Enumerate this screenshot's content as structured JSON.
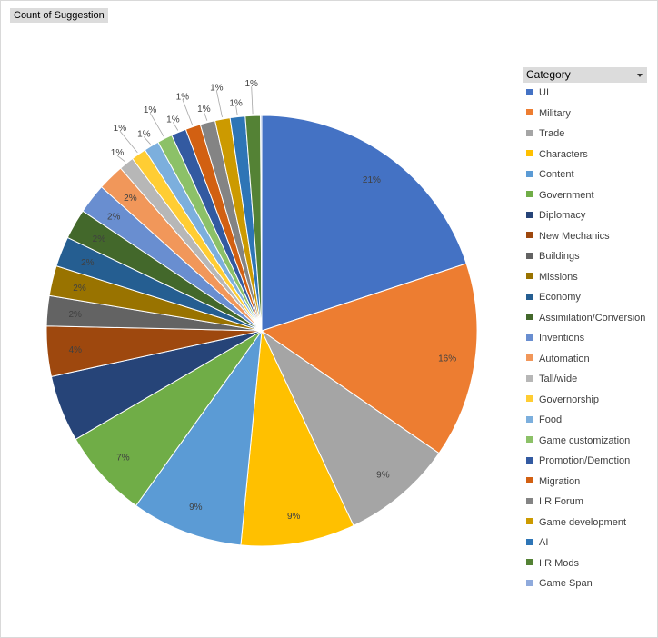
{
  "field_button": "Count of Suggestion",
  "legend_title": "Category",
  "chart_data": {
    "type": "pie",
    "categories": [
      "UI",
      "Military",
      "Trade",
      "Characters",
      "Content",
      "Government",
      "Diplomacy",
      "New Mechanics",
      "Buildings",
      "Missions",
      "Economy",
      "Assimilation/Conversion",
      "Inventions",
      "Automation",
      "Tall/wide",
      "Governorship",
      "Food",
      "Game customization",
      "Promotion/Demotion",
      "Migration",
      "I:R Forum",
      "Game development",
      "AI",
      "I:R Mods",
      "Game Span"
    ],
    "values": [
      21.2,
      15.6,
      8.9,
      9.1,
      8.9,
      7.1,
      5.3,
      4.0,
      2.4,
      2.4,
      2.4,
      2.4,
      2.4,
      2.1,
      1.2,
      1.2,
      1.2,
      1.2,
      1.2,
      1.2,
      1.2,
      1.2,
      1.2,
      1.2,
      0.1
    ],
    "data_labels": [
      "21%",
      "16%",
      "9%",
      "9%",
      "9%",
      "7%",
      "",
      "4%",
      "2%",
      "2%",
      "2%",
      "2%",
      "2%",
      "2%",
      "1%",
      "1%",
      "1%",
      "1%",
      "1%",
      "1%",
      "1%",
      "1%",
      "1%",
      "1%",
      ""
    ],
    "colors": [
      "#4472c4",
      "#ed7d31",
      "#a5a5a5",
      "#ffc000",
      "#5b9bd5",
      "#70ad47",
      "#264478",
      "#9e480e",
      "#636363",
      "#997300",
      "#255e91",
      "#43682b",
      "#698ed0",
      "#f1975a",
      "#b7b7b7",
      "#ffcd33",
      "#7cafdd",
      "#8cc168",
      "#335aa1",
      "#d26012",
      "#848484",
      "#cc9a00",
      "#2e75b6",
      "#548235",
      "#8faadc"
    ],
    "legend_position": "right"
  }
}
